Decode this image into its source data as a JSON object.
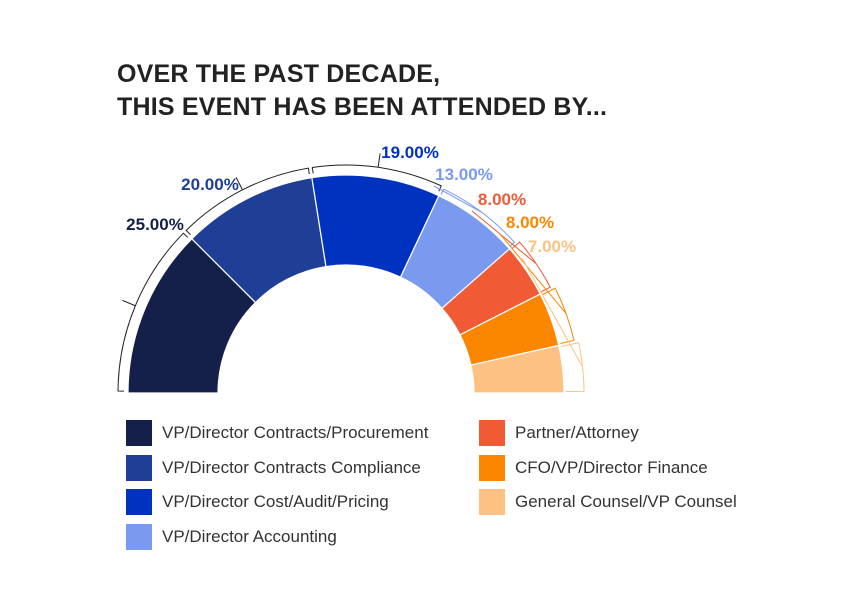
{
  "title": {
    "line1": "OVER THE PAST DECADE,",
    "line2": "THIS EVENT HAS BEEN ATTENDED BY..."
  },
  "chart_data": {
    "type": "pie",
    "subtype": "semi-donut",
    "title": "OVER THE PAST DECADE, THIS EVENT HAS BEEN ATTENDED BY...",
    "slices": [
      {
        "label": "VP/Director Contracts/Procurement",
        "value": 25,
        "display": "25.00%",
        "color": "#14204a",
        "label_color": "#14204a"
      },
      {
        "label": "VP/Director Contracts Compliance",
        "value": 20,
        "display": "20.00%",
        "color": "#1f3f96",
        "label_color": "#1f3f96"
      },
      {
        "label": "VP/Director Cost/Audit/Pricing",
        "value": 19,
        "display": "19.00%",
        "color": "#0032c0",
        "label_color": "#0032c0"
      },
      {
        "label": "VP/Director Accounting",
        "value": 13,
        "display": "13.00%",
        "color": "#7a9af0",
        "label_color": "#7a9af0"
      },
      {
        "label": "Partner/Attorney",
        "value": 8,
        "display": "8.00%",
        "color": "#f05a35",
        "label_color": "#f05a35"
      },
      {
        "label": "CFO/VP/Director Finance",
        "value": 8,
        "display": "8.00%",
        "color": "#fb8600",
        "label_color": "#fb8600"
      },
      {
        "label": "General Counsel/VP Counsel",
        "value": 7,
        "display": "7.00%",
        "color": "#fdc283",
        "label_color": "#fdc283"
      }
    ],
    "legend": [
      [
        "VP/Director Contracts/Procurement",
        "VP/Director Contracts Compliance",
        "VP/Director Cost/Audit/Pricing",
        "VP/Director Accounting"
      ],
      [
        "Partner/Attorney",
        "CFO/VP/Director Finance",
        "General Counsel/VP Counsel"
      ]
    ],
    "legend_placement": "bottom"
  }
}
